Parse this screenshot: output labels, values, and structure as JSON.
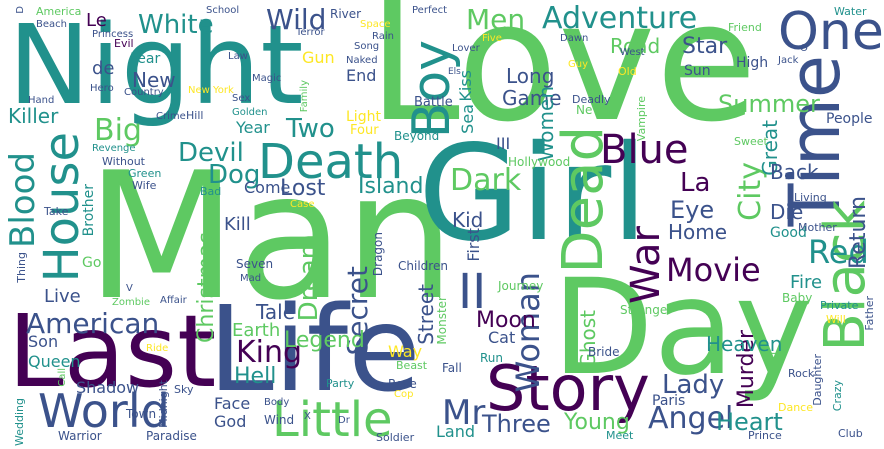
{
  "palette": {
    "background": "#ffffff",
    "colors": [
      "#440154",
      "#3b528b",
      "#21918c",
      "#5ec962",
      "#fde725"
    ]
  },
  "words": [
    {
      "text": "Love",
      "color": "#5ec962"
    },
    {
      "text": "Man",
      "color": "#5ec962"
    },
    {
      "text": "Night",
      "color": "#21918c"
    },
    {
      "text": "Girl",
      "color": "#21918c"
    },
    {
      "text": "Day",
      "color": "#5ec962"
    },
    {
      "text": "Last",
      "color": "#440154"
    },
    {
      "text": "Life",
      "color": "#3b528b"
    },
    {
      "text": "Time",
      "color": "#3b528b"
    },
    {
      "text": "Death",
      "color": "#21918c"
    },
    {
      "text": "Story",
      "color": "#440154"
    },
    {
      "text": "Black",
      "color": "#5ec962"
    },
    {
      "text": "Dead",
      "color": "#5ec962"
    },
    {
      "text": "World",
      "color": "#3b528b"
    },
    {
      "text": "House",
      "color": "#21918c"
    },
    {
      "text": "Little",
      "color": "#5ec962"
    },
    {
      "text": "One",
      "color": "#3b528b"
    },
    {
      "text": "Boy",
      "color": "#21918c"
    },
    {
      "text": "II",
      "color": "#3b528b"
    },
    {
      "text": "Blood",
      "color": "#21918c"
    },
    {
      "text": "Blue",
      "color": "#440154"
    },
    {
      "text": "War",
      "color": "#440154"
    },
    {
      "text": "Movie",
      "color": "#440154"
    },
    {
      "text": "Adventure",
      "color": "#21918c"
    },
    {
      "text": "City",
      "color": "#5ec962"
    },
    {
      "text": "Red",
      "color": "#21918c"
    },
    {
      "text": "Mr",
      "color": "#3b528b"
    },
    {
      "text": "Woman",
      "color": "#3b528b"
    },
    {
      "text": "White",
      "color": "#21918c"
    },
    {
      "text": "Two",
      "color": "#21918c"
    },
    {
      "text": "Big",
      "color": "#5ec962"
    },
    {
      "text": "Wild",
      "color": "#3b528b"
    },
    {
      "text": "Men",
      "color": "#5ec962"
    },
    {
      "text": "Devil",
      "color": "#21918c"
    },
    {
      "text": "Dark",
      "color": "#5ec962"
    },
    {
      "text": "King",
      "color": "#440154"
    },
    {
      "text": "Secret",
      "color": "#3b528b"
    },
    {
      "text": "American",
      "color": "#3b528b"
    },
    {
      "text": "Angel",
      "color": "#3b528b"
    },
    {
      "text": "Lady",
      "color": "#3b528b"
    },
    {
      "text": "Heart",
      "color": "#21918c"
    },
    {
      "text": "Return",
      "color": "#3b528b"
    },
    {
      "text": "Summer",
      "color": "#5ec962"
    },
    {
      "text": "Three",
      "color": "#3b528b"
    },
    {
      "text": "Young",
      "color": "#5ec962"
    },
    {
      "text": "Dream",
      "color": "#5ec962"
    },
    {
      "text": "Dog",
      "color": "#21918c"
    },
    {
      "text": "La",
      "color": "#440154"
    },
    {
      "text": "Eye",
      "color": "#3b528b"
    },
    {
      "text": "Christmas",
      "color": "#5ec962"
    },
    {
      "text": "Street",
      "color": "#3b528b"
    },
    {
      "text": "Murder",
      "color": "#440154"
    },
    {
      "text": "Hell",
      "color": "#21918c"
    },
    {
      "text": "Legend",
      "color": "#5ec962"
    },
    {
      "text": "Star",
      "color": "#3b528b"
    },
    {
      "text": "Moon",
      "color": "#440154"
    },
    {
      "text": "Island",
      "color": "#21918c"
    },
    {
      "text": "Lost",
      "color": "#3b528b"
    },
    {
      "text": "New",
      "color": "#3b528b"
    },
    {
      "text": "Long",
      "color": "#3b528b"
    },
    {
      "text": "Game",
      "color": "#3b528b"
    },
    {
      "text": "Women",
      "color": "#21918c"
    },
    {
      "text": "Road",
      "color": "#5ec962"
    },
    {
      "text": "Kid",
      "color": "#3b528b"
    },
    {
      "text": "Home",
      "color": "#3b528b"
    },
    {
      "text": "Great",
      "color": "#21918c"
    },
    {
      "text": "Back",
      "color": "#3b528b"
    },
    {
      "text": "Die",
      "color": "#3b528b"
    },
    {
      "text": "Heaven",
      "color": "#21918c"
    },
    {
      "text": "Ghost",
      "color": "#5ec962"
    },
    {
      "text": "Fire",
      "color": "#21918c"
    },
    {
      "text": "Killer",
      "color": "#21918c"
    },
    {
      "text": "Live",
      "color": "#3b528b"
    },
    {
      "text": "Tale",
      "color": "#3b528b"
    },
    {
      "text": "Earth",
      "color": "#5ec962"
    },
    {
      "text": "Kill",
      "color": "#3b528b"
    },
    {
      "text": "Son",
      "color": "#3b528b"
    },
    {
      "text": "Queen",
      "color": "#21918c"
    },
    {
      "text": "Shadow",
      "color": "#3b528b"
    },
    {
      "text": "Face",
      "color": "#3b528b"
    },
    {
      "text": "God",
      "color": "#3b528b"
    },
    {
      "text": "Way",
      "color": "#fde725"
    },
    {
      "text": "Land",
      "color": "#21918c"
    },
    {
      "text": "Paris",
      "color": "#3b528b"
    },
    {
      "text": "Sea",
      "color": "#21918c"
    },
    {
      "text": "Kiss",
      "color": "#21918c"
    },
    {
      "text": "III",
      "color": "#3b528b"
    },
    {
      "text": "First",
      "color": "#3b528b"
    },
    {
      "text": "Cat",
      "color": "#3b528b"
    },
    {
      "text": "Gun",
      "color": "#fde725"
    },
    {
      "text": "End",
      "color": "#3b528b"
    },
    {
      "text": "Year",
      "color": "#21918c"
    },
    {
      "text": "Come",
      "color": "#3b528b"
    },
    {
      "text": "Fear",
      "color": "#21918c"
    },
    {
      "text": "Go",
      "color": "#5ec962"
    },
    {
      "text": "Brother",
      "color": "#21918c"
    },
    {
      "text": "Good",
      "color": "#21918c"
    },
    {
      "text": "Run",
      "color": "#21918c"
    },
    {
      "text": "Sun",
      "color": "#3b528b"
    },
    {
      "text": "High",
      "color": "#3b528b"
    },
    {
      "text": "People",
      "color": "#3b528b"
    },
    {
      "text": "Hollywood",
      "color": "#5ec962"
    },
    {
      "text": "Children",
      "color": "#3b528b"
    },
    {
      "text": "Journey",
      "color": "#5ec962"
    },
    {
      "text": "Stranger",
      "color": "#5ec962"
    },
    {
      "text": "Baby",
      "color": "#5ec962"
    },
    {
      "text": "Sister",
      "color": "#5ec962"
    },
    {
      "text": "Bride",
      "color": "#3b528b"
    },
    {
      "text": "Rose",
      "color": "#3b528b"
    },
    {
      "text": "Fall",
      "color": "#3b528b"
    },
    {
      "text": "Beast",
      "color": "#5ec962"
    },
    {
      "text": "Monster",
      "color": "#5ec962"
    },
    {
      "text": "Party",
      "color": "#21918c"
    },
    {
      "text": "Dragon",
      "color": "#3b528b"
    },
    {
      "text": "Light",
      "color": "#fde725"
    },
    {
      "text": "Four",
      "color": "#fde725"
    },
    {
      "text": "Beyond",
      "color": "#21918c"
    },
    {
      "text": "Battle",
      "color": "#3b528b"
    },
    {
      "text": "Never",
      "color": "#5ec962"
    },
    {
      "text": "Deadly",
      "color": "#3b528b"
    },
    {
      "text": "Vampire",
      "color": "#5ec962"
    },
    {
      "text": "Sweet",
      "color": "#5ec962"
    },
    {
      "text": "Living",
      "color": "#3b528b"
    },
    {
      "text": "Mother",
      "color": "#3b528b"
    },
    {
      "text": "Private",
      "color": "#21918c"
    },
    {
      "text": "Will",
      "color": "#fde725"
    },
    {
      "text": "Father",
      "color": "#3b528b"
    },
    {
      "text": "Rock",
      "color": "#3b528b"
    },
    {
      "text": "Daughter",
      "color": "#3b528b"
    },
    {
      "text": "Crazy",
      "color": "#21918c"
    },
    {
      "text": "Dance",
      "color": "#fde725"
    },
    {
      "text": "Club",
      "color": "#3b528b"
    },
    {
      "text": "Prince",
      "color": "#3b528b"
    },
    {
      "text": "Meet",
      "color": "#21918c"
    },
    {
      "text": "Soldier",
      "color": "#3b528b"
    },
    {
      "text": "Cop",
      "color": "#fde725"
    },
    {
      "text": "Dr",
      "color": "#3b528b"
    },
    {
      "text": "X",
      "color": "#3b528b"
    },
    {
      "text": "Paradise",
      "color": "#3b528b"
    },
    {
      "text": "Town",
      "color": "#3b528b"
    },
    {
      "text": "Midnight",
      "color": "#3b528b"
    },
    {
      "text": "Sky",
      "color": "#3b528b"
    },
    {
      "text": "Wind",
      "color": "#3b528b"
    },
    {
      "text": "Body",
      "color": "#3b528b"
    },
    {
      "text": "Warrior",
      "color": "#3b528b"
    },
    {
      "text": "Wedding",
      "color": "#21918c"
    },
    {
      "text": "Call",
      "color": "#5ec962"
    },
    {
      "text": "Ride",
      "color": "#fde725"
    },
    {
      "text": "Zombie",
      "color": "#5ec962"
    },
    {
      "text": "Affair",
      "color": "#3b528b"
    },
    {
      "text": "V",
      "color": "#3b528b"
    },
    {
      "text": "Mad",
      "color": "#3b528b"
    },
    {
      "text": "Seven",
      "color": "#3b528b"
    },
    {
      "text": "Case",
      "color": "#fde725"
    },
    {
      "text": "Bad",
      "color": "#21918c"
    },
    {
      "text": "Thing",
      "color": "#3b528b"
    },
    {
      "text": "Take",
      "color": "#3b528b"
    },
    {
      "text": "Wife",
      "color": "#3b528b"
    },
    {
      "text": "Green",
      "color": "#21918c"
    },
    {
      "text": "Without",
      "color": "#3b528b"
    },
    {
      "text": "Revenge",
      "color": "#21918c"
    },
    {
      "text": "Crime",
      "color": "#3b528b"
    },
    {
      "text": "Hill",
      "color": "#3b528b"
    },
    {
      "text": "Golden",
      "color": "#21918c"
    },
    {
      "text": "Sex",
      "color": "#3b528b"
    },
    {
      "text": "Family",
      "color": "#5ec962"
    },
    {
      "text": "Naked",
      "color": "#3b528b"
    },
    {
      "text": "Song",
      "color": "#3b528b"
    },
    {
      "text": "Space",
      "color": "#fde725"
    },
    {
      "text": "Rain",
      "color": "#3b528b"
    },
    {
      "text": "Terror",
      "color": "#3b528b"
    },
    {
      "text": "River",
      "color": "#3b528b"
    },
    {
      "text": "School",
      "color": "#3b528b"
    },
    {
      "text": "Perfect",
      "color": "#3b528b"
    },
    {
      "text": "Five",
      "color": "#fde725"
    },
    {
      "text": "Lover",
      "color": "#3b528b"
    },
    {
      "text": "Dawn",
      "color": "#3b528b"
    },
    {
      "text": "Guy",
      "color": "#fde725"
    },
    {
      "text": "Old",
      "color": "#fde725"
    },
    {
      "text": "West",
      "color": "#3b528b"
    },
    {
      "text": "Friend",
      "color": "#5ec962"
    },
    {
      "text": "Water",
      "color": "#21918c"
    },
    {
      "text": "Jack",
      "color": "#3b528b"
    },
    {
      "text": "O",
      "color": "#3b528b"
    },
    {
      "text": "Els",
      "color": "#3b528b"
    },
    {
      "text": "America",
      "color": "#5ec962"
    },
    {
      "text": "Beach",
      "color": "#3b528b"
    },
    {
      "text": "D",
      "color": "#3b528b"
    },
    {
      "text": "Le",
      "color": "#440154"
    },
    {
      "text": "de",
      "color": "#3b528b"
    },
    {
      "text": "Princess",
      "color": "#3b528b"
    },
    {
      "text": "Evil",
      "color": "#440154"
    },
    {
      "text": "Law",
      "color": "#3b528b"
    },
    {
      "text": "Magic",
      "color": "#3b528b"
    },
    {
      "text": "New York",
      "color": "#fde725"
    },
    {
      "text": "Hero",
      "color": "#3b528b"
    },
    {
      "text": "Country",
      "color": "#3b528b"
    },
    {
      "text": "Hand",
      "color": "#3b528b"
    }
  ]
}
